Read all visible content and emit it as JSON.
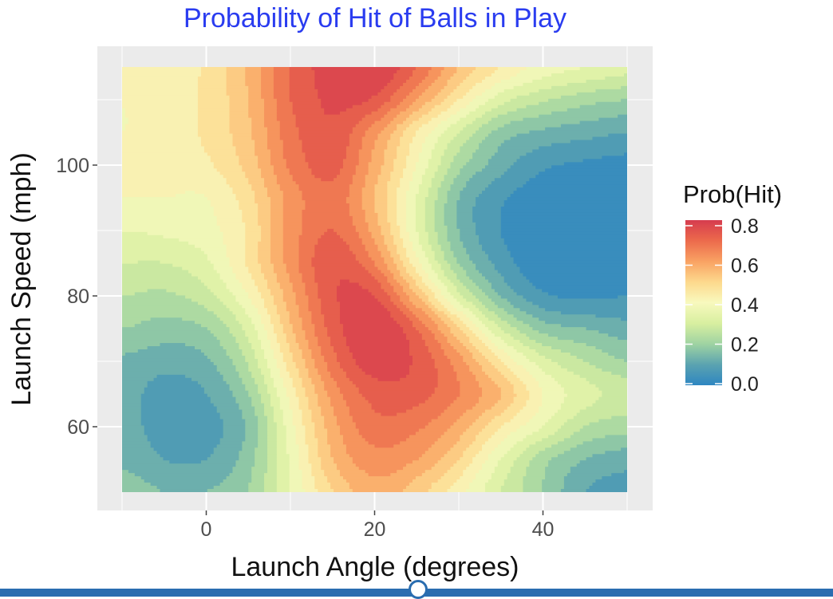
{
  "chart_data": {
    "type": "heatmap",
    "title": "Probability of Hit of Balls in Play",
    "xlabel": "Launch Angle (degrees)",
    "ylabel": "Launch Speed (mph)",
    "xlim": [
      -10,
      50
    ],
    "ylim": [
      50,
      115
    ],
    "x_ticks": [
      0,
      20,
      40
    ],
    "y_ticks": [
      60,
      80,
      100
    ],
    "x_tick_labels": [
      "0",
      "20",
      "40"
    ],
    "y_tick_labels": [
      "60",
      "80",
      "100"
    ],
    "legend": {
      "title": "Prob(Hit)",
      "labels": [
        "0.8",
        "0.6",
        "0.4",
        "0.2",
        "0.0"
      ],
      "values": [
        0.8,
        0.6,
        0.4,
        0.2,
        0.0
      ],
      "placement": "right"
    },
    "grid": true,
    "panel_background": "#ebebeb",
    "title_color": "#2a3cf0",
    "colorscale": [
      {
        "value": 0.0,
        "color": "#2e86c1"
      },
      {
        "value": 0.1,
        "color": "#5ba3b0"
      },
      {
        "value": 0.2,
        "color": "#9fd3a2"
      },
      {
        "value": 0.3,
        "color": "#d8efa0"
      },
      {
        "value": 0.4,
        "color": "#f8f9be"
      },
      {
        "value": 0.5,
        "color": "#fdd98d"
      },
      {
        "value": 0.6,
        "color": "#f9a263"
      },
      {
        "value": 0.7,
        "color": "#ec6a4c"
      },
      {
        "value": 0.8,
        "color": "#d63c4e"
      }
    ],
    "contour_step": 0.05,
    "grid_x": [
      -10,
      -5,
      0,
      5,
      10,
      15,
      20,
      25,
      30,
      35,
      40,
      45,
      50
    ],
    "grid_y": [
      50,
      55,
      60,
      65,
      70,
      75,
      80,
      85,
      90,
      95,
      100,
      105,
      110,
      115
    ],
    "z": [
      [
        0.18,
        0.15,
        0.15,
        0.2,
        0.35,
        0.5,
        0.58,
        0.52,
        0.42,
        0.3,
        0.2,
        0.1,
        0.08
      ],
      [
        0.14,
        0.1,
        0.1,
        0.18,
        0.36,
        0.55,
        0.63,
        0.6,
        0.5,
        0.35,
        0.22,
        0.15,
        0.12
      ],
      [
        0.12,
        0.08,
        0.08,
        0.16,
        0.38,
        0.58,
        0.68,
        0.66,
        0.58,
        0.45,
        0.35,
        0.25,
        0.22
      ],
      [
        0.12,
        0.08,
        0.1,
        0.2,
        0.42,
        0.62,
        0.72,
        0.72,
        0.65,
        0.55,
        0.4,
        0.32,
        0.28
      ],
      [
        0.14,
        0.12,
        0.14,
        0.26,
        0.48,
        0.68,
        0.78,
        0.74,
        0.62,
        0.45,
        0.32,
        0.25,
        0.2
      ],
      [
        0.2,
        0.18,
        0.2,
        0.32,
        0.54,
        0.72,
        0.8,
        0.7,
        0.5,
        0.3,
        0.18,
        0.15,
        0.12
      ],
      [
        0.25,
        0.24,
        0.28,
        0.4,
        0.58,
        0.74,
        0.75,
        0.55,
        0.32,
        0.15,
        0.06,
        0.04,
        0.05
      ],
      [
        0.3,
        0.3,
        0.34,
        0.46,
        0.62,
        0.74,
        0.65,
        0.42,
        0.2,
        0.08,
        0.01,
        0.0,
        0.02
      ],
      [
        0.35,
        0.36,
        0.38,
        0.46,
        0.62,
        0.7,
        0.58,
        0.35,
        0.15,
        0.05,
        0.0,
        0.0,
        0.0
      ],
      [
        0.4,
        0.4,
        0.4,
        0.48,
        0.62,
        0.68,
        0.55,
        0.35,
        0.15,
        0.06,
        0.02,
        0.0,
        0.0
      ],
      [
        0.42,
        0.42,
        0.44,
        0.52,
        0.66,
        0.72,
        0.58,
        0.4,
        0.22,
        0.12,
        0.06,
        0.04,
        0.03
      ],
      [
        0.4,
        0.42,
        0.46,
        0.54,
        0.68,
        0.74,
        0.62,
        0.45,
        0.3,
        0.18,
        0.14,
        0.12,
        0.1
      ],
      [
        0.4,
        0.42,
        0.46,
        0.55,
        0.7,
        0.76,
        0.74,
        0.6,
        0.45,
        0.32,
        0.26,
        0.22,
        0.2
      ],
      [
        0.4,
        0.42,
        0.46,
        0.56,
        0.7,
        0.78,
        0.8,
        0.7,
        0.55,
        0.45,
        0.38,
        0.35,
        0.32
      ]
    ]
  }
}
